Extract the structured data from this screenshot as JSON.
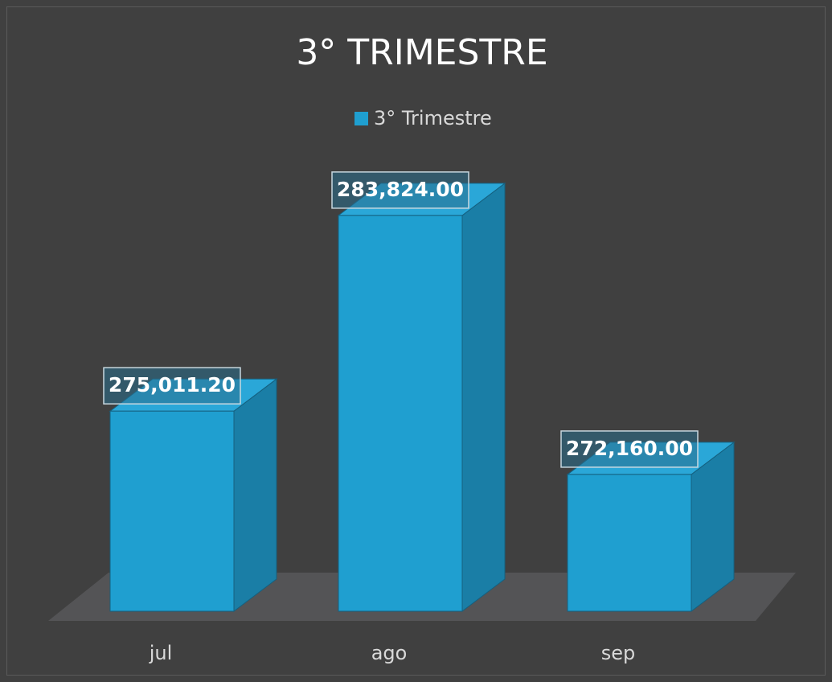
{
  "chart_data": {
    "type": "bar3d",
    "title": "3° TRIMESTRE",
    "categories": [
      "jul",
      "ago",
      "sep"
    ],
    "series": [
      {
        "name": "3° Trimestre",
        "color": "#1f9fd0",
        "values": [
          275011.2,
          283824,
          272160
        ],
        "value_labels": [
          "275,011.20",
          "283,824.00",
          "272,160.00"
        ]
      }
    ],
    "ylim": [
      266000,
      284000
    ]
  }
}
